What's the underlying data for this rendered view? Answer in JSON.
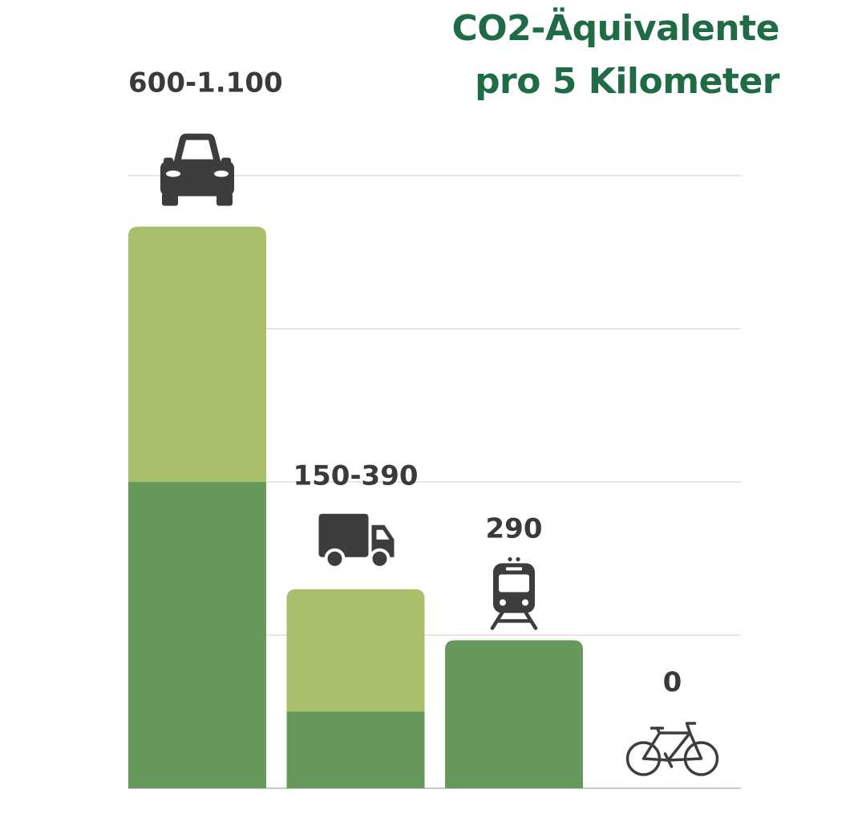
{
  "chart_data": {
    "type": "bar",
    "title_lines": [
      "CO2-Äquivalente",
      "pro 5 Kilometer"
    ],
    "xlabel": "",
    "ylabel": "",
    "ylim": [
      0,
      1200
    ],
    "grid": true,
    "categories": [
      "car",
      "truck",
      "train",
      "bicycle"
    ],
    "value_labels": [
      "600-1.100",
      "150-390",
      "290",
      "0"
    ],
    "series": [
      {
        "values": [
          600,
          150,
          290,
          0
        ]
      },
      {
        "values": [
          500,
          240,
          0,
          0
        ]
      }
    ],
    "category_icons": [
      "car-icon",
      "truck-icon",
      "train-icon",
      "bicycle-icon"
    ]
  },
  "colors": {
    "title": "#1f6b45",
    "text": "#3a3a3a",
    "lower_segment": "#66995a",
    "upper_segment": "#a9bf6c",
    "grid": "#dddddd",
    "icon": "#3d3d3d"
  }
}
